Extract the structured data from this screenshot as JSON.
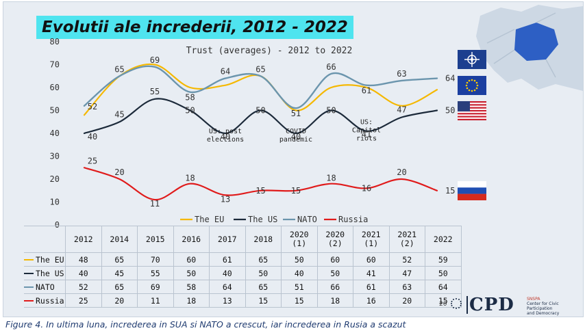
{
  "headline": "Evolutii ale increderii, 2012 - 2022",
  "caption": "Figure 4. In ultima luna, increderea in SUA si NATO a crescut, iar increderea in Rusia a scazut",
  "footer": {
    "page_number": "20",
    "logo_text": "CPD",
    "logo_lines": [
      "SNSPA",
      "Center for Civic Participation",
      "and Democracy"
    ]
  },
  "chart_data": {
    "type": "line",
    "title": "Trust (averages) - 2012 to 2022",
    "categories": [
      "2012",
      "2014",
      "2015",
      "2016",
      "2017",
      "2018",
      "2020 (1)",
      "2020 (2)",
      "2021 (1)",
      "2021 (2)",
      "2022"
    ],
    "ylim": [
      0,
      80
    ],
    "yticks": [
      0,
      10,
      20,
      30,
      40,
      50,
      60,
      70,
      80
    ],
    "grid": false,
    "legend_position": "bottom",
    "series": [
      {
        "name": "The EU",
        "color": "#f5b800",
        "values": [
          48,
          65,
          70,
          60,
          61,
          65,
          50,
          60,
          60,
          52,
          59
        ]
      },
      {
        "name": "The US",
        "color": "#1c2a3a",
        "values": [
          40,
          45,
          55,
          50,
          40,
          50,
          40,
          50,
          41,
          47,
          50
        ]
      },
      {
        "name": "NATO",
        "color": "#6b95ad",
        "values": [
          52,
          65,
          69,
          58,
          64,
          65,
          51,
          66,
          61,
          63,
          64
        ]
      },
      {
        "name": "Russia",
        "color": "#e01b1b",
        "values": [
          25,
          20,
          11,
          18,
          13,
          15,
          15,
          18,
          16,
          20,
          15
        ]
      }
    ],
    "data_labels": [
      {
        "index": 0,
        "value": "52",
        "series": "NATO"
      },
      {
        "index": 1,
        "value": "65",
        "series": "NATO"
      },
      {
        "index": 2,
        "value": "69",
        "series": "NATO"
      },
      {
        "index": 3,
        "value": "58",
        "series": "NATO"
      },
      {
        "index": 4,
        "value": "64",
        "series": "NATO"
      },
      {
        "index": 5,
        "value": "65",
        "series": "NATO"
      },
      {
        "index": 6,
        "value": "51",
        "series": "NATO"
      },
      {
        "index": 7,
        "value": "66",
        "series": "NATO"
      },
      {
        "index": 8,
        "value": "61",
        "series": "NATO"
      },
      {
        "index": 9,
        "value": "63",
        "series": "NATO"
      },
      {
        "index": 10,
        "value": "64",
        "series": "NATO"
      },
      {
        "index": 0,
        "value": "40",
        "series": "The US"
      },
      {
        "index": 1,
        "value": "45",
        "series": "The US"
      },
      {
        "index": 2,
        "value": "55",
        "series": "The US"
      },
      {
        "index": 3,
        "value": "50",
        "series": "The US"
      },
      {
        "index": 4,
        "value": "40",
        "series": "The US"
      },
      {
        "index": 5,
        "value": "50",
        "series": "The US"
      },
      {
        "index": 6,
        "value": "40",
        "series": "The US"
      },
      {
        "index": 7,
        "value": "50",
        "series": "The US"
      },
      {
        "index": 8,
        "value": "41",
        "series": "The US"
      },
      {
        "index": 9,
        "value": "47",
        "series": "The US"
      },
      {
        "index": 10,
        "value": "50",
        "series": "The US"
      },
      {
        "index": 0,
        "value": "25",
        "series": "Russia"
      },
      {
        "index": 1,
        "value": "20",
        "series": "Russia"
      },
      {
        "index": 2,
        "value": "11",
        "series": "Russia"
      },
      {
        "index": 3,
        "value": "18",
        "series": "Russia"
      },
      {
        "index": 4,
        "value": "13",
        "series": "Russia"
      },
      {
        "index": 5,
        "value": "15",
        "series": "Russia"
      },
      {
        "index": 6,
        "value": "15",
        "series": "Russia"
      },
      {
        "index": 7,
        "value": "18",
        "series": "Russia"
      },
      {
        "index": 8,
        "value": "16",
        "series": "Russia"
      },
      {
        "index": 9,
        "value": "20",
        "series": "Russia"
      },
      {
        "index": 10,
        "value": "15",
        "series": "Russia"
      }
    ],
    "annotations": [
      {
        "index": 4,
        "y": 37,
        "text": [
          "US: post",
          "elections"
        ]
      },
      {
        "index": 6,
        "y": 37,
        "text": [
          "COVID",
          "pandemic"
        ]
      },
      {
        "index": 8,
        "y": 41,
        "text": [
          "US:",
          "Capitol",
          "riots"
        ]
      }
    ],
    "flags": [
      "NATO",
      "EU",
      "USA",
      "Russia"
    ]
  }
}
